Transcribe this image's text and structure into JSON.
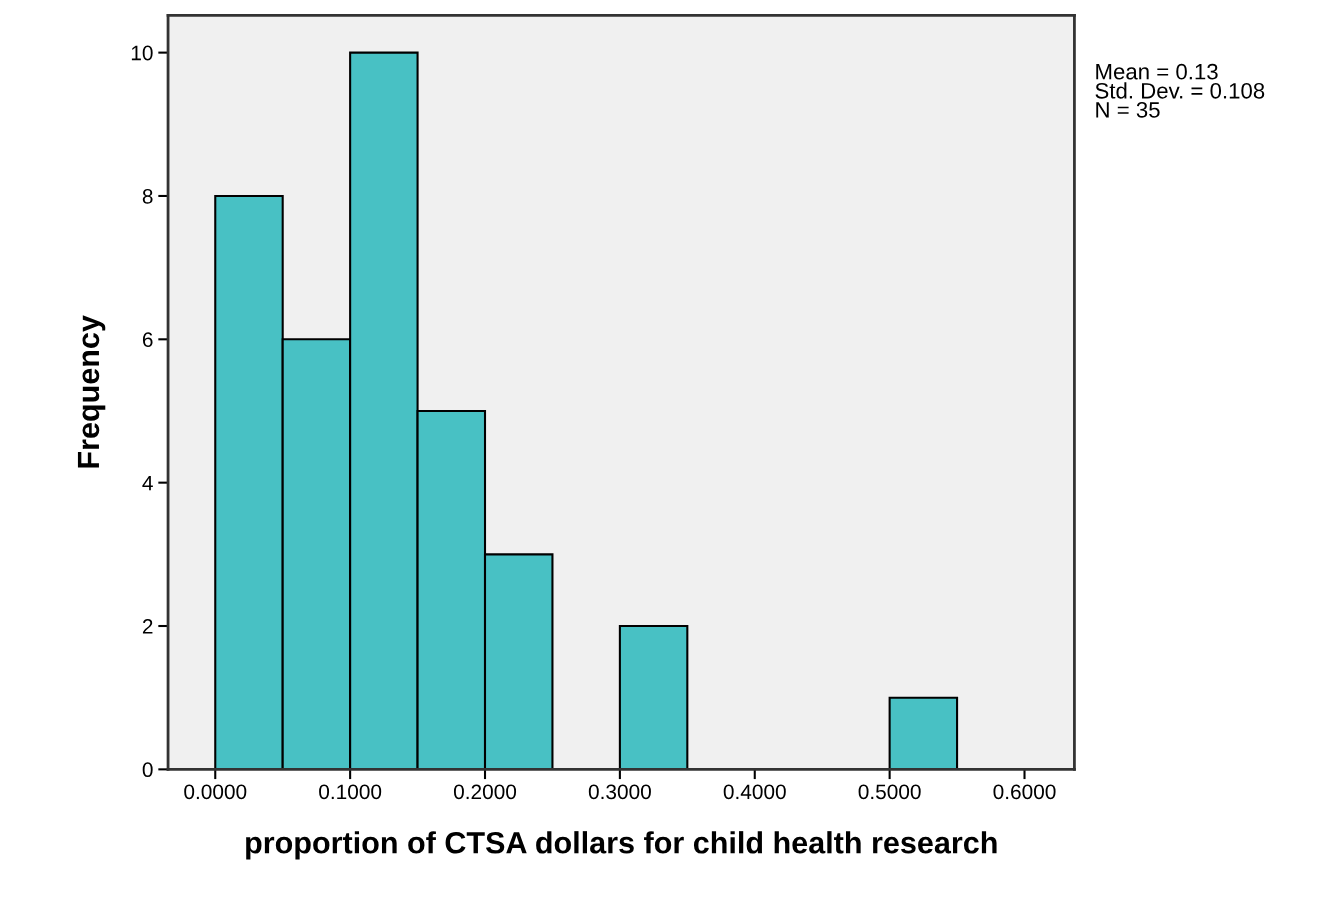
{
  "chart_data": {
    "type": "histogram",
    "xlabel": "proportion of CTSA dollars for child health research",
    "ylabel": "Frequency",
    "bins": [
      0,
      0.05,
      0.1,
      0.15,
      0.2,
      0.25,
      0.3,
      0.35,
      0.4,
      0.45,
      0.5,
      0.55
    ],
    "values": [
      8,
      6,
      10,
      5,
      3,
      0,
      2,
      0,
      0,
      0,
      1
    ],
    "color": "#48c1c4",
    "xlim": [
      -0.035,
      0.637
    ],
    "ylim": [
      0,
      10.52
    ],
    "xticks": [
      {
        "value": 0,
        "label": "0.0000"
      },
      {
        "value": 0.1,
        "label": "0.1000"
      },
      {
        "value": 0.2,
        "label": "0.2000"
      },
      {
        "value": 0.3,
        "label": "0.3000"
      },
      {
        "value": 0.4,
        "label": "0.4000"
      },
      {
        "value": 0.5,
        "label": "0.5000"
      },
      {
        "value": 0.6,
        "label": "0.6000"
      }
    ],
    "yticks": [
      0,
      2,
      4,
      6,
      8,
      10
    ],
    "annotations": [
      "Mean = 0.13\nStd. Dev. = 0.108\nN = 35"
    ],
    "grid": false
  }
}
